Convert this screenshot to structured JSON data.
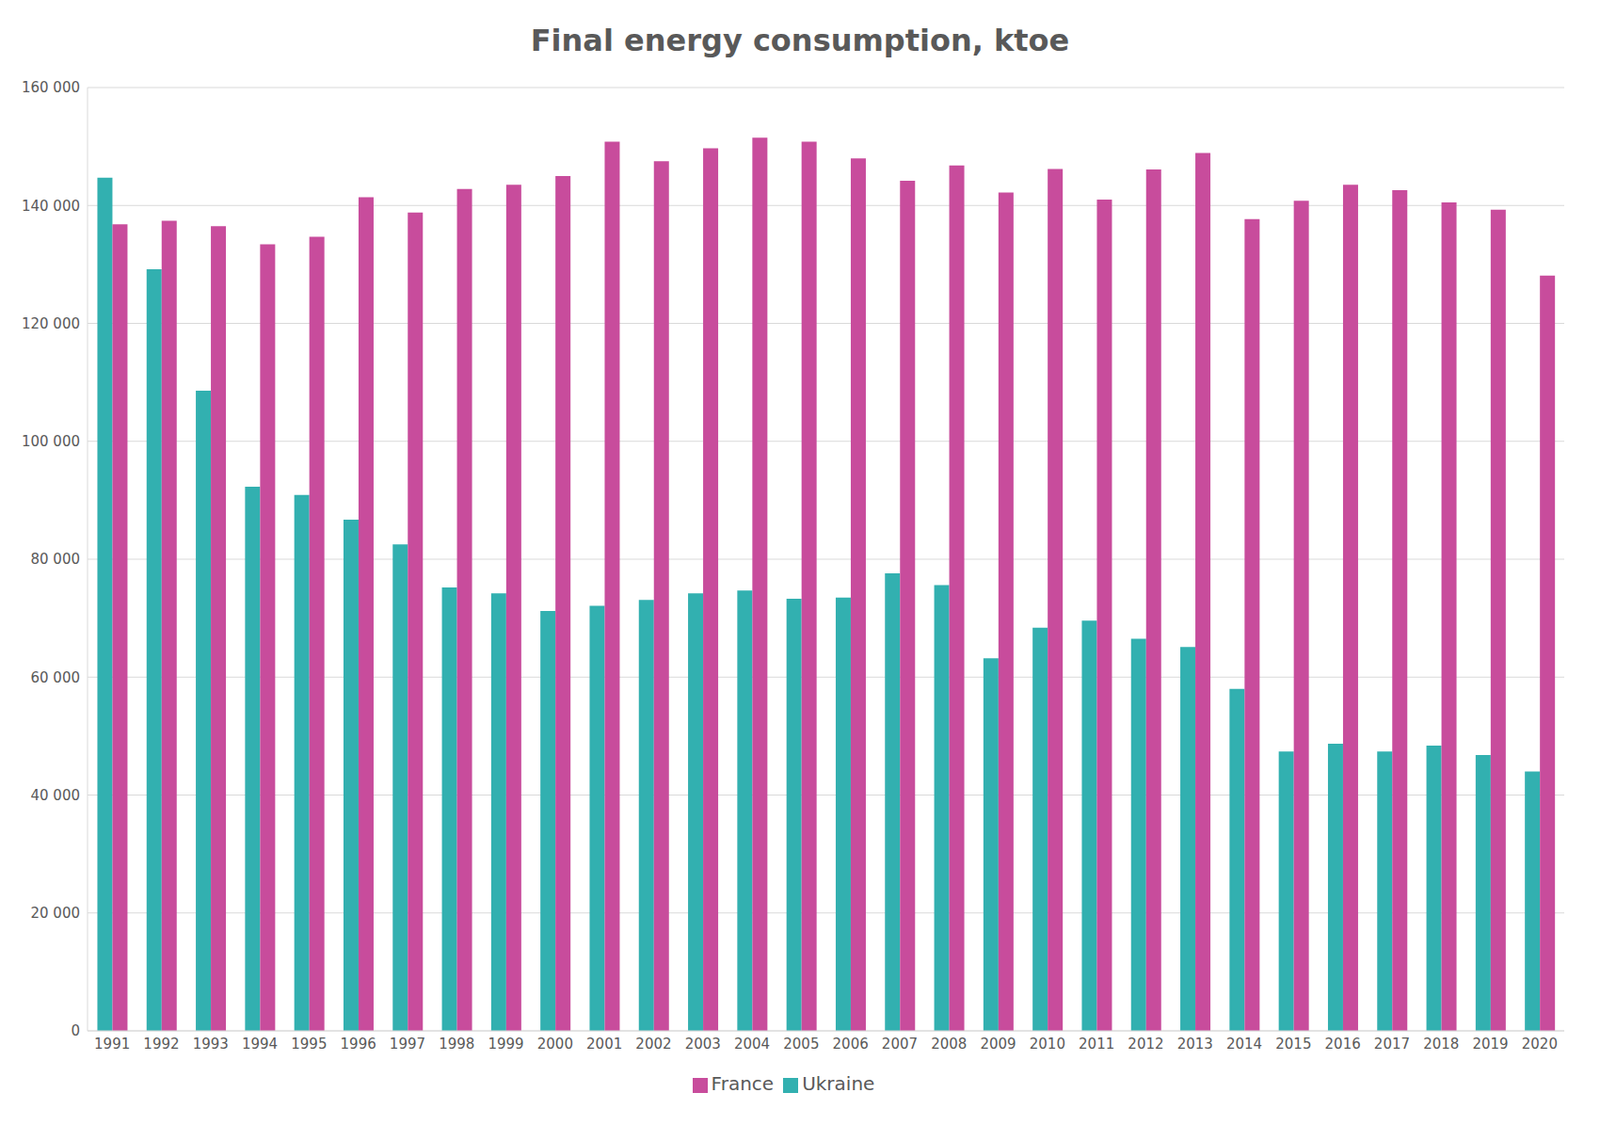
{
  "chart_data": {
    "type": "bar",
    "title": "Final energy consumption, ktoe",
    "categories": [
      "1991",
      "1992",
      "1993",
      "1994",
      "1995",
      "1996",
      "1997",
      "1998",
      "1999",
      "2000",
      "2001",
      "2002",
      "2003",
      "2004",
      "2005",
      "2006",
      "2007",
      "2008",
      "2009",
      "2010",
      "2011",
      "2012",
      "2013",
      "2014",
      "2015",
      "2016",
      "2017",
      "2018",
      "2019",
      "2020"
    ],
    "series": [
      {
        "name": "Ukraine",
        "color": "#32b0b0",
        "values": [
          144700,
          129200,
          108600,
          92300,
          90900,
          86700,
          82500,
          75200,
          74200,
          71200,
          72100,
          73100,
          74200,
          74700,
          73300,
          73500,
          77600,
          75600,
          63200,
          68400,
          69600,
          66500,
          65100,
          58000,
          47400,
          48700,
          47400,
          48400,
          46800,
          44000
        ]
      },
      {
        "name": "France",
        "color": "#c84c9c",
        "values": [
          136800,
          137400,
          136500,
          133400,
          134700,
          141400,
          138800,
          142800,
          143500,
          145000,
          150800,
          147500,
          149700,
          151500,
          150800,
          148000,
          144200,
          146800,
          142200,
          146200,
          141000,
          146100,
          148900,
          137700,
          140800,
          143500,
          142600,
          140500,
          139300,
          128100
        ]
      }
    ],
    "ylim": [
      0,
      160000
    ],
    "yticks": [
      0,
      {
        "value": 20000,
        "label": "20 000"
      },
      {
        "value": 40000,
        "label": "40 000"
      },
      {
        "value": 60000,
        "label": "60 000"
      },
      {
        "value": 80000,
        "label": "80 000"
      },
      {
        "value": 100000,
        "label": "100 000"
      },
      {
        "value": 120000,
        "label": "120 000"
      },
      {
        "value": 140000,
        "label": "140 000"
      },
      {
        "value": 160000,
        "label": "160 000"
      }
    ],
    "grid": true,
    "legend": "bottom"
  }
}
